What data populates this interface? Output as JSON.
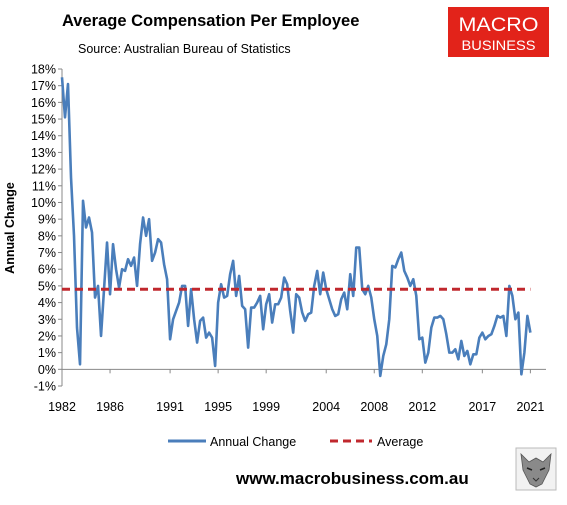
{
  "header": {
    "title": "Average Compensation Per Employee",
    "subtitle": "Source: Australian Bureau of Statistics"
  },
  "logo": {
    "line1": "MACRO",
    "line2": "BUSINESS",
    "bg_color": "#e2231a"
  },
  "footer": {
    "website": "www.macrobusiness.com.au",
    "mascot_icon": "wolf-head-icon"
  },
  "chart_data": {
    "type": "line",
    "ylabel": "Annual Change",
    "xlabel": "",
    "xlim": [
      1982.0,
      2022.3
    ],
    "ylim": [
      -1,
      18
    ],
    "x_ticks": [
      1982,
      1986,
      1991,
      1995,
      1999,
      2004,
      2008,
      2012,
      2017,
      2021
    ],
    "y_ticks": [
      {
        "value": -1,
        "label": "-1%"
      },
      {
        "value": 0,
        "label": "0%"
      },
      {
        "value": 1,
        "label": "1%"
      },
      {
        "value": 2,
        "label": "2%"
      },
      {
        "value": 3,
        "label": "3%"
      },
      {
        "value": 4,
        "label": "4%"
      },
      {
        "value": 5,
        "label": "5%"
      },
      {
        "value": 6,
        "label": "6%"
      },
      {
        "value": 7,
        "label": "7%"
      },
      {
        "value": 8,
        "label": "8%"
      },
      {
        "value": 9,
        "label": "9%"
      },
      {
        "value": 10,
        "label": "10%"
      },
      {
        "value": 11,
        "label": "11%"
      },
      {
        "value": 12,
        "label": "12%"
      },
      {
        "value": 13,
        "label": "13%"
      },
      {
        "value": 14,
        "label": "14%"
      },
      {
        "value": 15,
        "label": "15%"
      },
      {
        "value": 16,
        "label": "16%"
      },
      {
        "value": 17,
        "label": "17%"
      },
      {
        "value": 18,
        "label": "18%"
      }
    ],
    "grid": false,
    "legend_position": "bottom",
    "series": [
      {
        "name": "Annual Change",
        "color": "#4a7ebb",
        "style": "solid",
        "points": [
          [
            1982.0,
            17.5
          ],
          [
            1982.25,
            15.1
          ],
          [
            1982.5,
            17.1
          ],
          [
            1982.75,
            11.5
          ],
          [
            1983.0,
            8.0
          ],
          [
            1983.25,
            2.5
          ],
          [
            1983.5,
            0.3
          ],
          [
            1983.75,
            10.1
          ],
          [
            1984.0,
            8.5
          ],
          [
            1984.25,
            9.1
          ],
          [
            1984.5,
            8.2
          ],
          [
            1984.75,
            4.3
          ],
          [
            1985.0,
            5.0
          ],
          [
            1985.25,
            2.0
          ],
          [
            1985.5,
            4.8
          ],
          [
            1985.75,
            7.6
          ],
          [
            1986.0,
            4.5
          ],
          [
            1986.25,
            7.5
          ],
          [
            1986.5,
            6.0
          ],
          [
            1986.75,
            4.9
          ],
          [
            1987.0,
            6.0
          ],
          [
            1987.25,
            5.9
          ],
          [
            1987.5,
            6.6
          ],
          [
            1987.75,
            6.2
          ],
          [
            1988.0,
            6.7
          ],
          [
            1988.25,
            5.0
          ],
          [
            1988.5,
            7.5
          ],
          [
            1988.75,
            9.1
          ],
          [
            1989.0,
            8.0
          ],
          [
            1989.25,
            9.0
          ],
          [
            1989.5,
            6.5
          ],
          [
            1989.75,
            7.0
          ],
          [
            1990.0,
            7.8
          ],
          [
            1990.25,
            7.6
          ],
          [
            1990.5,
            6.3
          ],
          [
            1990.75,
            5.4
          ],
          [
            1991.0,
            1.8
          ],
          [
            1991.25,
            3.0
          ],
          [
            1991.5,
            3.5
          ],
          [
            1991.75,
            4.0
          ],
          [
            1992.0,
            5.0
          ],
          [
            1992.25,
            5.0
          ],
          [
            1992.5,
            2.6
          ],
          [
            1992.75,
            4.8
          ],
          [
            1993.0,
            3.0
          ],
          [
            1993.25,
            1.6
          ],
          [
            1993.5,
            2.9
          ],
          [
            1993.75,
            3.1
          ],
          [
            1994.0,
            1.9
          ],
          [
            1994.25,
            2.2
          ],
          [
            1994.5,
            1.9
          ],
          [
            1994.75,
            0.2
          ],
          [
            1995.0,
            4.0
          ],
          [
            1995.25,
            5.1
          ],
          [
            1995.5,
            4.3
          ],
          [
            1995.75,
            4.4
          ],
          [
            1996.0,
            5.7
          ],
          [
            1996.25,
            6.5
          ],
          [
            1996.5,
            4.4
          ],
          [
            1996.75,
            5.6
          ],
          [
            1997.0,
            3.8
          ],
          [
            1997.25,
            3.6
          ],
          [
            1997.5,
            1.3
          ],
          [
            1997.75,
            3.7
          ],
          [
            1998.0,
            3.7
          ],
          [
            1998.25,
            4.0
          ],
          [
            1998.5,
            4.4
          ],
          [
            1998.75,
            2.4
          ],
          [
            1999.0,
            3.9
          ],
          [
            1999.25,
            4.5
          ],
          [
            1999.5,
            2.8
          ],
          [
            1999.75,
            3.9
          ],
          [
            2000.0,
            3.9
          ],
          [
            2000.25,
            4.3
          ],
          [
            2000.5,
            5.5
          ],
          [
            2000.75,
            5.1
          ],
          [
            2001.0,
            3.5
          ],
          [
            2001.25,
            2.2
          ],
          [
            2001.5,
            4.5
          ],
          [
            2001.75,
            4.3
          ],
          [
            2002.0,
            3.4
          ],
          [
            2002.25,
            2.9
          ],
          [
            2002.5,
            3.3
          ],
          [
            2002.75,
            3.4
          ],
          [
            2003.0,
            5.0
          ],
          [
            2003.25,
            5.9
          ],
          [
            2003.5,
            4.5
          ],
          [
            2003.75,
            5.8
          ],
          [
            2004.0,
            4.8
          ],
          [
            2004.25,
            4.2
          ],
          [
            2004.5,
            3.6
          ],
          [
            2004.75,
            3.2
          ],
          [
            2005.0,
            3.3
          ],
          [
            2005.25,
            4.2
          ],
          [
            2005.5,
            4.6
          ],
          [
            2005.75,
            3.6
          ],
          [
            2006.0,
            5.7
          ],
          [
            2006.25,
            4.4
          ],
          [
            2006.5,
            7.3
          ],
          [
            2006.75,
            7.3
          ],
          [
            2007.0,
            4.8
          ],
          [
            2007.25,
            4.5
          ],
          [
            2007.5,
            5.0
          ],
          [
            2007.75,
            4.3
          ],
          [
            2008.0,
            3.0
          ],
          [
            2008.25,
            2.0
          ],
          [
            2008.5,
            -0.4
          ],
          [
            2008.75,
            0.8
          ],
          [
            2009.0,
            1.5
          ],
          [
            2009.25,
            3.0
          ],
          [
            2009.5,
            6.2
          ],
          [
            2009.75,
            6.1
          ],
          [
            2010.0,
            6.6
          ],
          [
            2010.25,
            7.0
          ],
          [
            2010.5,
            5.9
          ],
          [
            2010.75,
            5.5
          ],
          [
            2011.0,
            5.0
          ],
          [
            2011.25,
            5.4
          ],
          [
            2011.5,
            4.4
          ],
          [
            2011.75,
            1.8
          ],
          [
            2012.0,
            1.9
          ],
          [
            2012.25,
            0.4
          ],
          [
            2012.5,
            1.0
          ],
          [
            2012.75,
            2.5
          ],
          [
            2013.0,
            3.1
          ],
          [
            2013.25,
            3.1
          ],
          [
            2013.5,
            3.2
          ],
          [
            2013.75,
            3.0
          ],
          [
            2014.0,
            2.1
          ],
          [
            2014.25,
            1.0
          ],
          [
            2014.5,
            1.0
          ],
          [
            2014.75,
            1.2
          ],
          [
            2015.0,
            0.6
          ],
          [
            2015.25,
            1.7
          ],
          [
            2015.5,
            0.8
          ],
          [
            2015.75,
            1.1
          ],
          [
            2016.0,
            0.3
          ],
          [
            2016.25,
            0.9
          ],
          [
            2016.5,
            0.9
          ],
          [
            2016.75,
            1.9
          ],
          [
            2017.0,
            2.2
          ],
          [
            2017.25,
            1.8
          ],
          [
            2017.5,
            2.0
          ],
          [
            2017.75,
            2.1
          ],
          [
            2018.0,
            2.6
          ],
          [
            2018.25,
            3.2
          ],
          [
            2018.5,
            3.1
          ],
          [
            2018.75,
            3.2
          ],
          [
            2019.0,
            2.0
          ],
          [
            2019.25,
            5.0
          ],
          [
            2019.5,
            4.4
          ],
          [
            2019.75,
            3.0
          ],
          [
            2020.0,
            3.4
          ],
          [
            2020.25,
            -0.3
          ],
          [
            2020.5,
            1.0
          ],
          [
            2020.75,
            3.2
          ],
          [
            2021.0,
            2.2
          ]
        ]
      },
      {
        "name": "Average",
        "color": "#c0282e",
        "style": "dashed",
        "points": [
          [
            1982.0,
            4.8
          ],
          [
            2021.0,
            4.8
          ]
        ]
      }
    ]
  }
}
